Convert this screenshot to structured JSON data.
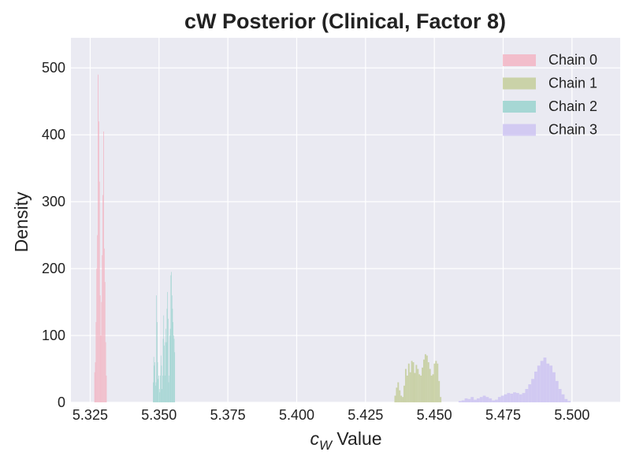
{
  "chart_data": {
    "type": "histogram",
    "title": "cW Posterior (Clinical, Factor 8)",
    "xlabel_symbol": "c",
    "xlabel_sub": "W",
    "xlabel_rest": " Value",
    "ylabel": "Density",
    "xlim": [
      5.318,
      5.5175
    ],
    "ylim": [
      0,
      545
    ],
    "x_ticks": [
      5.325,
      5.35,
      5.375,
      5.4,
      5.425,
      5.45,
      5.475,
      5.5
    ],
    "x_tick_labels": [
      "5.325",
      "5.350",
      "5.375",
      "5.400",
      "5.425",
      "5.450",
      "5.475",
      "5.500"
    ],
    "y_ticks": [
      0,
      100,
      200,
      300,
      400,
      500
    ],
    "y_tick_labels": [
      "0",
      "100",
      "200",
      "300",
      "400",
      "500"
    ],
    "grid": true,
    "legend_position": "top-right",
    "background": "#eaeaf2",
    "series": [
      {
        "name": "Chain 0",
        "color": "#f4aebd",
        "bin_start": 5.3265,
        "bin_width": 0.00025,
        "values": [
          45,
          60,
          120,
          200,
          250,
          490,
          420,
          330,
          160,
          100,
          150,
          220,
          310,
          405,
          230,
          180,
          90,
          40
        ]
      },
      {
        "name": "Chain 1",
        "color": "#bfc98f",
        "bin_start": 5.4355,
        "bin_width": 0.00055,
        "values": [
          10,
          22,
          30,
          18,
          10,
          8,
          25,
          50,
          40,
          58,
          45,
          62,
          60,
          44,
          56,
          50,
          42,
          40,
          52,
          64,
          72,
          70,
          60,
          50,
          40,
          42,
          58,
          62,
          58,
          32,
          8
        ]
      },
      {
        "name": "Chain 2",
        "color": "#8fd0ca",
        "bin_start": 5.3478,
        "bin_width": 0.0002,
        "values": [
          30,
          68,
          55,
          60,
          25,
          30,
          160,
          120,
          60,
          35,
          40,
          20,
          15,
          40,
          70,
          55,
          20,
          40,
          95,
          130,
          85,
          40,
          90,
          110,
          90,
          140,
          165,
          125,
          30,
          40,
          100,
          110,
          190,
          195,
          160,
          140,
          120,
          100,
          95,
          75
        ]
      },
      {
        "name": "Chain 3",
        "color": "#c9bff2",
        "bin_start": 5.4588,
        "bin_width": 0.0011,
        "values": [
          2,
          3,
          6,
          5,
          8,
          4,
          6,
          8,
          10,
          8,
          6,
          3,
          4,
          8,
          10,
          12,
          14,
          13,
          15,
          14,
          12,
          14,
          20,
          27,
          35,
          46,
          55,
          62,
          67,
          58,
          55,
          45,
          32,
          20,
          12,
          5,
          2
        ]
      }
    ]
  }
}
